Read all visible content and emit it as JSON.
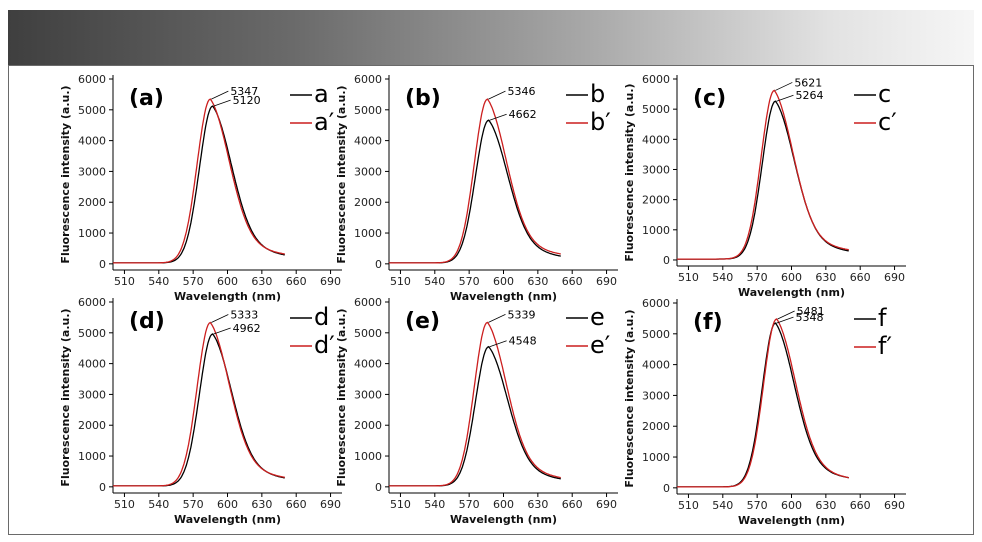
{
  "colors": {
    "series_1": "#000000",
    "series_2": "#cc1f1f",
    "axis": "#000000"
  },
  "chart_data": [
    {
      "type": "line",
      "panel_label": "(a)",
      "xlabel": "Wavelength (nm)",
      "ylabel": "Fluorescence intensity (a.u.)",
      "xlim": [
        500,
        700
      ],
      "ylim": [
        -200,
        6000
      ],
      "xticks": [
        510,
        540,
        570,
        600,
        630,
        660,
        690
      ],
      "yticks": [
        0,
        1000,
        2000,
        3000,
        4000,
        5000,
        6000
      ],
      "series": [
        {
          "name": "a",
          "peak_x": 587,
          "peak": 5120,
          "end": 290,
          "label": "5120"
        },
        {
          "name": "a′",
          "peak_x": 585,
          "peak": 5347,
          "end": 320,
          "label": "5347"
        }
      ]
    },
    {
      "type": "line",
      "panel_label": "(b)",
      "xlabel": "Wavelength (nm)",
      "ylabel": "Fluorescence intensity (a.u.)",
      "xlim": [
        500,
        700
      ],
      "ylim": [
        -200,
        6000
      ],
      "xticks": [
        510,
        540,
        570,
        600,
        630,
        660,
        690
      ],
      "yticks": [
        0,
        1000,
        2000,
        3000,
        4000,
        5000,
        6000
      ],
      "series": [
        {
          "name": "b",
          "peak_x": 587,
          "peak": 4662,
          "end": 250,
          "label": "4662"
        },
        {
          "name": "b′",
          "peak_x": 586,
          "peak": 5346,
          "end": 320,
          "label": "5346"
        }
      ]
    },
    {
      "type": "line",
      "panel_label": "(c)",
      "xlabel": "Wavelength (nm)",
      "ylabel": "Fluorescence intensity (a.u.)",
      "xlim": [
        500,
        700
      ],
      "ylim": [
        -200,
        6000
      ],
      "xticks": [
        510,
        540,
        570,
        600,
        630,
        660,
        690
      ],
      "yticks": [
        0,
        1000,
        2000,
        3000,
        4000,
        5000,
        6000
      ],
      "series": [
        {
          "name": "c",
          "peak_x": 586,
          "peak": 5264,
          "end": 300,
          "label": "5264"
        },
        {
          "name": "c′",
          "peak_x": 585,
          "peak": 5621,
          "end": 340,
          "label": "5621"
        }
      ]
    },
    {
      "type": "line",
      "panel_label": "(d)",
      "xlabel": "Wavelength (nm)",
      "ylabel": "Fluorescence intensity (a.u.)",
      "xlim": [
        500,
        700
      ],
      "ylim": [
        -200,
        6000
      ],
      "xticks": [
        510,
        540,
        570,
        600,
        630,
        660,
        690
      ],
      "yticks": [
        0,
        1000,
        2000,
        3000,
        4000,
        5000,
        6000
      ],
      "series": [
        {
          "name": "d",
          "peak_x": 587,
          "peak": 4962,
          "end": 290,
          "label": "4962"
        },
        {
          "name": "d′",
          "peak_x": 585,
          "peak": 5333,
          "end": 310,
          "label": "5333"
        }
      ]
    },
    {
      "type": "line",
      "panel_label": "(e)",
      "xlabel": "Wavelength (nm)",
      "ylabel": "Fluorescence intensity (a.u.)",
      "xlim": [
        500,
        700
      ],
      "ylim": [
        -200,
        6000
      ],
      "xticks": [
        510,
        540,
        570,
        600,
        630,
        660,
        690
      ],
      "yticks": [
        0,
        1000,
        2000,
        3000,
        4000,
        5000,
        6000
      ],
      "series": [
        {
          "name": "e",
          "peak_x": 587,
          "peak": 4548,
          "end": 260,
          "label": "4548"
        },
        {
          "name": "e′",
          "peak_x": 586,
          "peak": 5339,
          "end": 300,
          "label": "5339"
        }
      ]
    },
    {
      "type": "line",
      "panel_label": "(f)",
      "xlabel": "Wavelength (nm)",
      "ylabel": "Fluorescence intensity (a.u.)",
      "xlim": [
        500,
        700
      ],
      "ylim": [
        -200,
        6000
      ],
      "xticks": [
        510,
        540,
        570,
        600,
        630,
        660,
        690
      ],
      "yticks": [
        0,
        1000,
        2000,
        3000,
        4000,
        5000,
        6000
      ],
      "series": [
        {
          "name": "f",
          "peak_x": 586,
          "peak": 5348,
          "end": 330,
          "label": "5348"
        },
        {
          "name": "f′",
          "peak_x": 587,
          "peak": 5481,
          "end": 330,
          "label": "5481"
        }
      ]
    }
  ]
}
